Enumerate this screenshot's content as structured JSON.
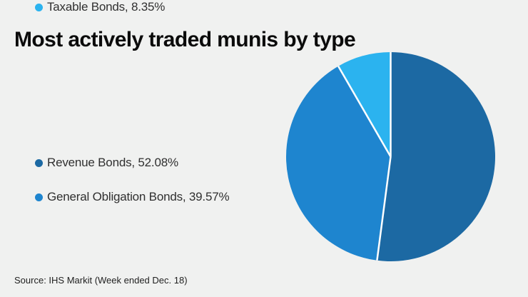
{
  "page": {
    "background": "#f0f1f0"
  },
  "header": {
    "title": "Most actively traded munis by type"
  },
  "footer": {
    "source": "Source: IHS Markit (Week ended Dec. 18)"
  },
  "chart_data": {
    "type": "pie",
    "title": "Most actively traded munis by type",
    "source": "Source: IHS Markit (Week ended Dec. 18)",
    "direction": "clockwise",
    "start_angle_deg": 0,
    "legend_position": "left",
    "separator_color": "#ffffff",
    "slices": [
      {
        "label": "Revenue Bonds",
        "value": 52.08,
        "legend_text": "Revenue Bonds, 52.08%",
        "color": "#1c69a3"
      },
      {
        "label": "General Obligation Bonds",
        "value": 39.57,
        "legend_text": "General Obligation Bonds, 39.57%",
        "color": "#1e85cf"
      },
      {
        "label": "Taxable Bonds",
        "value": 8.35,
        "legend_text": "Taxable Bonds, 8.35%",
        "color": "#2bb3ef"
      }
    ]
  }
}
